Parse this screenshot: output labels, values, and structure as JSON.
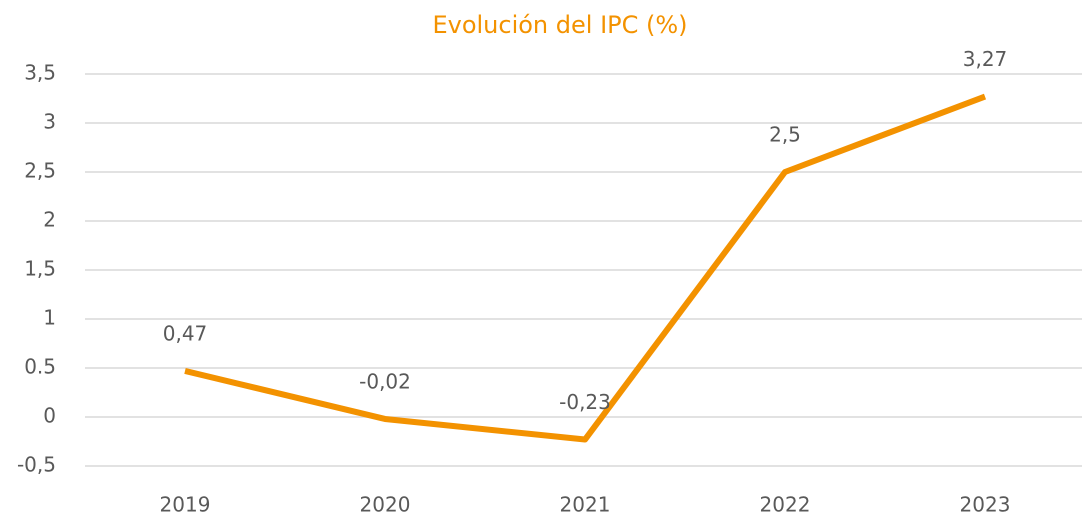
{
  "chart_data": {
    "type": "line",
    "title": "Evolución del IPC (%)",
    "categories": [
      "2019",
      "2020",
      "2021",
      "2022",
      "2023"
    ],
    "series": [
      {
        "name": "IPC",
        "color": "#f39200",
        "values": [
          0.47,
          -0.02,
          -0.23,
          2.5,
          3.27
        ],
        "value_labels": [
          "0,47",
          "-0,02",
          "-0,23",
          "2,5",
          "3,27"
        ]
      }
    ],
    "ylim": [
      -0.5,
      3.5
    ],
    "yticks": [
      {
        "value": -0.5,
        "label": "-0,5"
      },
      0,
      0.5,
      1,
      {
        "value": 1.5,
        "label": "1,5"
      },
      2,
      {
        "value": 2.5,
        "label": "2,5"
      },
      3,
      {
        "value": 3.5,
        "label": "3,5"
      }
    ],
    "grid": true
  }
}
